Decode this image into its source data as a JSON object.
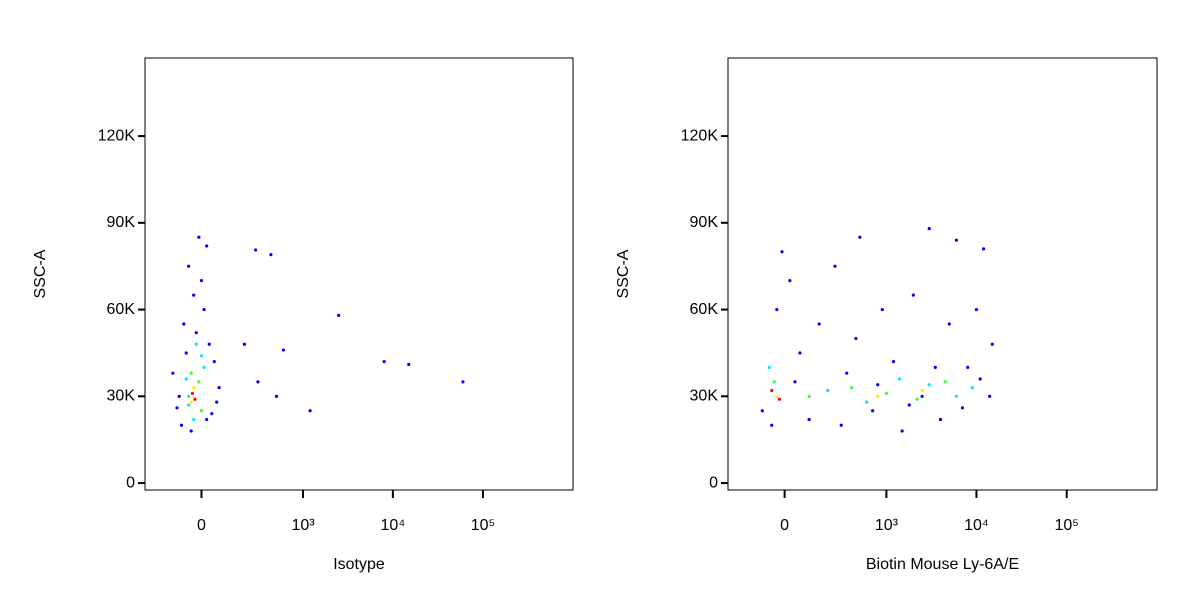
{
  "chart_data": [
    {
      "type": "scatter",
      "xlabel": "Isotype",
      "ylabel": "SSC-A",
      "xscale": "biexponential",
      "xlim": [
        -300,
        1000000
      ],
      "ylim": [
        -2400,
        147000
      ],
      "xticks": [
        0,
        {
          "value": 1000,
          "label": "10³"
        },
        {
          "value": 10000,
          "label": "10⁴"
        },
        {
          "value": 100000,
          "label": "10⁵"
        }
      ],
      "yticks": [
        0,
        {
          "value": 30000,
          "label": "30K"
        },
        {
          "value": 60000,
          "label": "60K"
        },
        {
          "value": 90000,
          "label": "90K"
        },
        {
          "value": 120000,
          "label": "120K"
        }
      ],
      "series": [
        {
          "color": "#0000ff",
          "x": [
            -80,
            -40,
            20,
            -100,
            60,
            -60,
            -20,
            10,
            -30,
            0,
            -50,
            20,
            -10,
            -120,
            70,
            50,
            -70,
            30,
            40,
            -90,
            280,
            430,
            2500,
            8000,
            15000,
            60000,
            1200,
            300,
            500,
            600,
            200
          ],
          "values": [
            20000,
            18000,
            22000,
            26000,
            28000,
            45000,
            52000,
            60000,
            65000,
            70000,
            75000,
            82000,
            85000,
            38000,
            33000,
            42000,
            55000,
            48000,
            24000,
            30000,
            80600,
            79000,
            58000,
            42000,
            41000,
            35000,
            25000,
            35000,
            30000,
            46000,
            48000
          ]
        },
        {
          "color": "#00e5ff",
          "x": [
            -50,
            -20,
            10,
            -60,
            0,
            -30
          ],
          "values": [
            27000,
            48000,
            40000,
            36000,
            44000,
            22000
          ]
        },
        {
          "color": "#33ff33",
          "x": [
            -40,
            -10,
            -50,
            0
          ],
          "values": [
            38000,
            35000,
            30000,
            25000
          ]
        },
        {
          "color": "#ffee00",
          "x": [
            -30,
            -40
          ],
          "values": [
            33000,
            28000
          ]
        },
        {
          "color": "#ff0000",
          "x": [
            -35,
            -25
          ],
          "values": [
            31000,
            29000
          ]
        }
      ]
    },
    {
      "type": "scatter",
      "xlabel": "Biotin Mouse Ly-6A/E",
      "ylabel": "SSC-A",
      "xscale": "biexponential",
      "xlim": [
        -300,
        1000000
      ],
      "ylim": [
        -2400,
        147000
      ],
      "xticks": [
        0,
        {
          "value": 1000,
          "label": "10³"
        },
        {
          "value": 10000,
          "label": "10⁴"
        },
        {
          "value": 100000,
          "label": "10⁵"
        }
      ],
      "yticks": [
        0,
        {
          "value": 30000,
          "label": "30K"
        },
        {
          "value": 60000,
          "label": "60K"
        },
        {
          "value": 90000,
          "label": "90K"
        },
        {
          "value": 120000,
          "label": "120K"
        }
      ],
      "series": [
        {
          "color": "#0000ff",
          "x": [
            -90,
            -30,
            -10,
            20,
            60,
            100,
            150,
            250,
            300,
            450,
            500,
            700,
            900,
            1200,
            1500,
            2000,
            2500,
            3000,
            4000,
            5000,
            6000,
            8000,
            10000,
            12000,
            14000,
            15000,
            -50,
            40,
            350,
            800,
            1800,
            3500,
            7000,
            11000
          ],
          "values": [
            25000,
            60000,
            80000,
            70000,
            45000,
            22000,
            55000,
            75000,
            20000,
            50000,
            85000,
            25000,
            60000,
            42000,
            18000,
            65000,
            30000,
            88000,
            22000,
            55000,
            84000,
            40000,
            60000,
            81000,
            30000,
            48000,
            20000,
            35000,
            38000,
            34000,
            27000,
            40000,
            26000,
            36000
          ]
        },
        {
          "color": "#00e5ff",
          "x": [
            -60,
            200,
            600,
            1400,
            3000,
            6000,
            9000
          ],
          "values": [
            40000,
            32000,
            28000,
            36000,
            34000,
            30000,
            33000
          ]
        },
        {
          "color": "#33ff33",
          "x": [
            -40,
            100,
            400,
            1000,
            2200,
            4500
          ],
          "values": [
            35000,
            30000,
            33000,
            31000,
            29000,
            35000
          ]
        },
        {
          "color": "#ffee00",
          "x": [
            -30,
            800,
            2500
          ],
          "values": [
            30000,
            30000,
            32000
          ]
        },
        {
          "color": "#ff0000",
          "x": [
            -50,
            -20
          ],
          "values": [
            32000,
            29000
          ]
        }
      ]
    }
  ]
}
